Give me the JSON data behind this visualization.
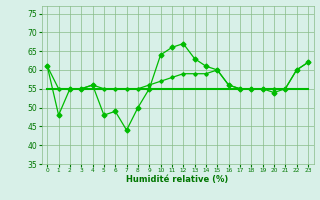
{
  "x": [
    0,
    1,
    2,
    3,
    4,
    5,
    6,
    7,
    8,
    9,
    10,
    11,
    12,
    13,
    14,
    15,
    16,
    17,
    18,
    19,
    20,
    21,
    22,
    23
  ],
  "line1": [
    61,
    48,
    55,
    55,
    56,
    48,
    49,
    44,
    50,
    55,
    64,
    66,
    67,
    63,
    61,
    60,
    56,
    55,
    55,
    55,
    54,
    55,
    60,
    62
  ],
  "line2": [
    61,
    55,
    55,
    55,
    56,
    55,
    55,
    55,
    55,
    56,
    57,
    58,
    59,
    59,
    59,
    60,
    56,
    55,
    55,
    55,
    55,
    55,
    60,
    62
  ],
  "line3": [
    55,
    55,
    55,
    55,
    55,
    55,
    55,
    55,
    55,
    55,
    55,
    55,
    55,
    55,
    55,
    55,
    55,
    55,
    55,
    55,
    55,
    55,
    55,
    55
  ],
  "line_color": "#00bb00",
  "bg_color": "#d8f0e8",
  "grid_color": "#88bb88",
  "xlabel": "Humidité relative (%)",
  "xlabel_color": "#007700",
  "tick_color": "#007700",
  "ylim": [
    35,
    77
  ],
  "yticks": [
    35,
    40,
    45,
    50,
    55,
    60,
    65,
    70,
    75
  ],
  "xlim": [
    -0.5,
    23.5
  ],
  "xticks": [
    0,
    1,
    2,
    3,
    4,
    5,
    6,
    7,
    8,
    9,
    10,
    11,
    12,
    13,
    14,
    15,
    16,
    17,
    18,
    19,
    20,
    21,
    22,
    23
  ]
}
